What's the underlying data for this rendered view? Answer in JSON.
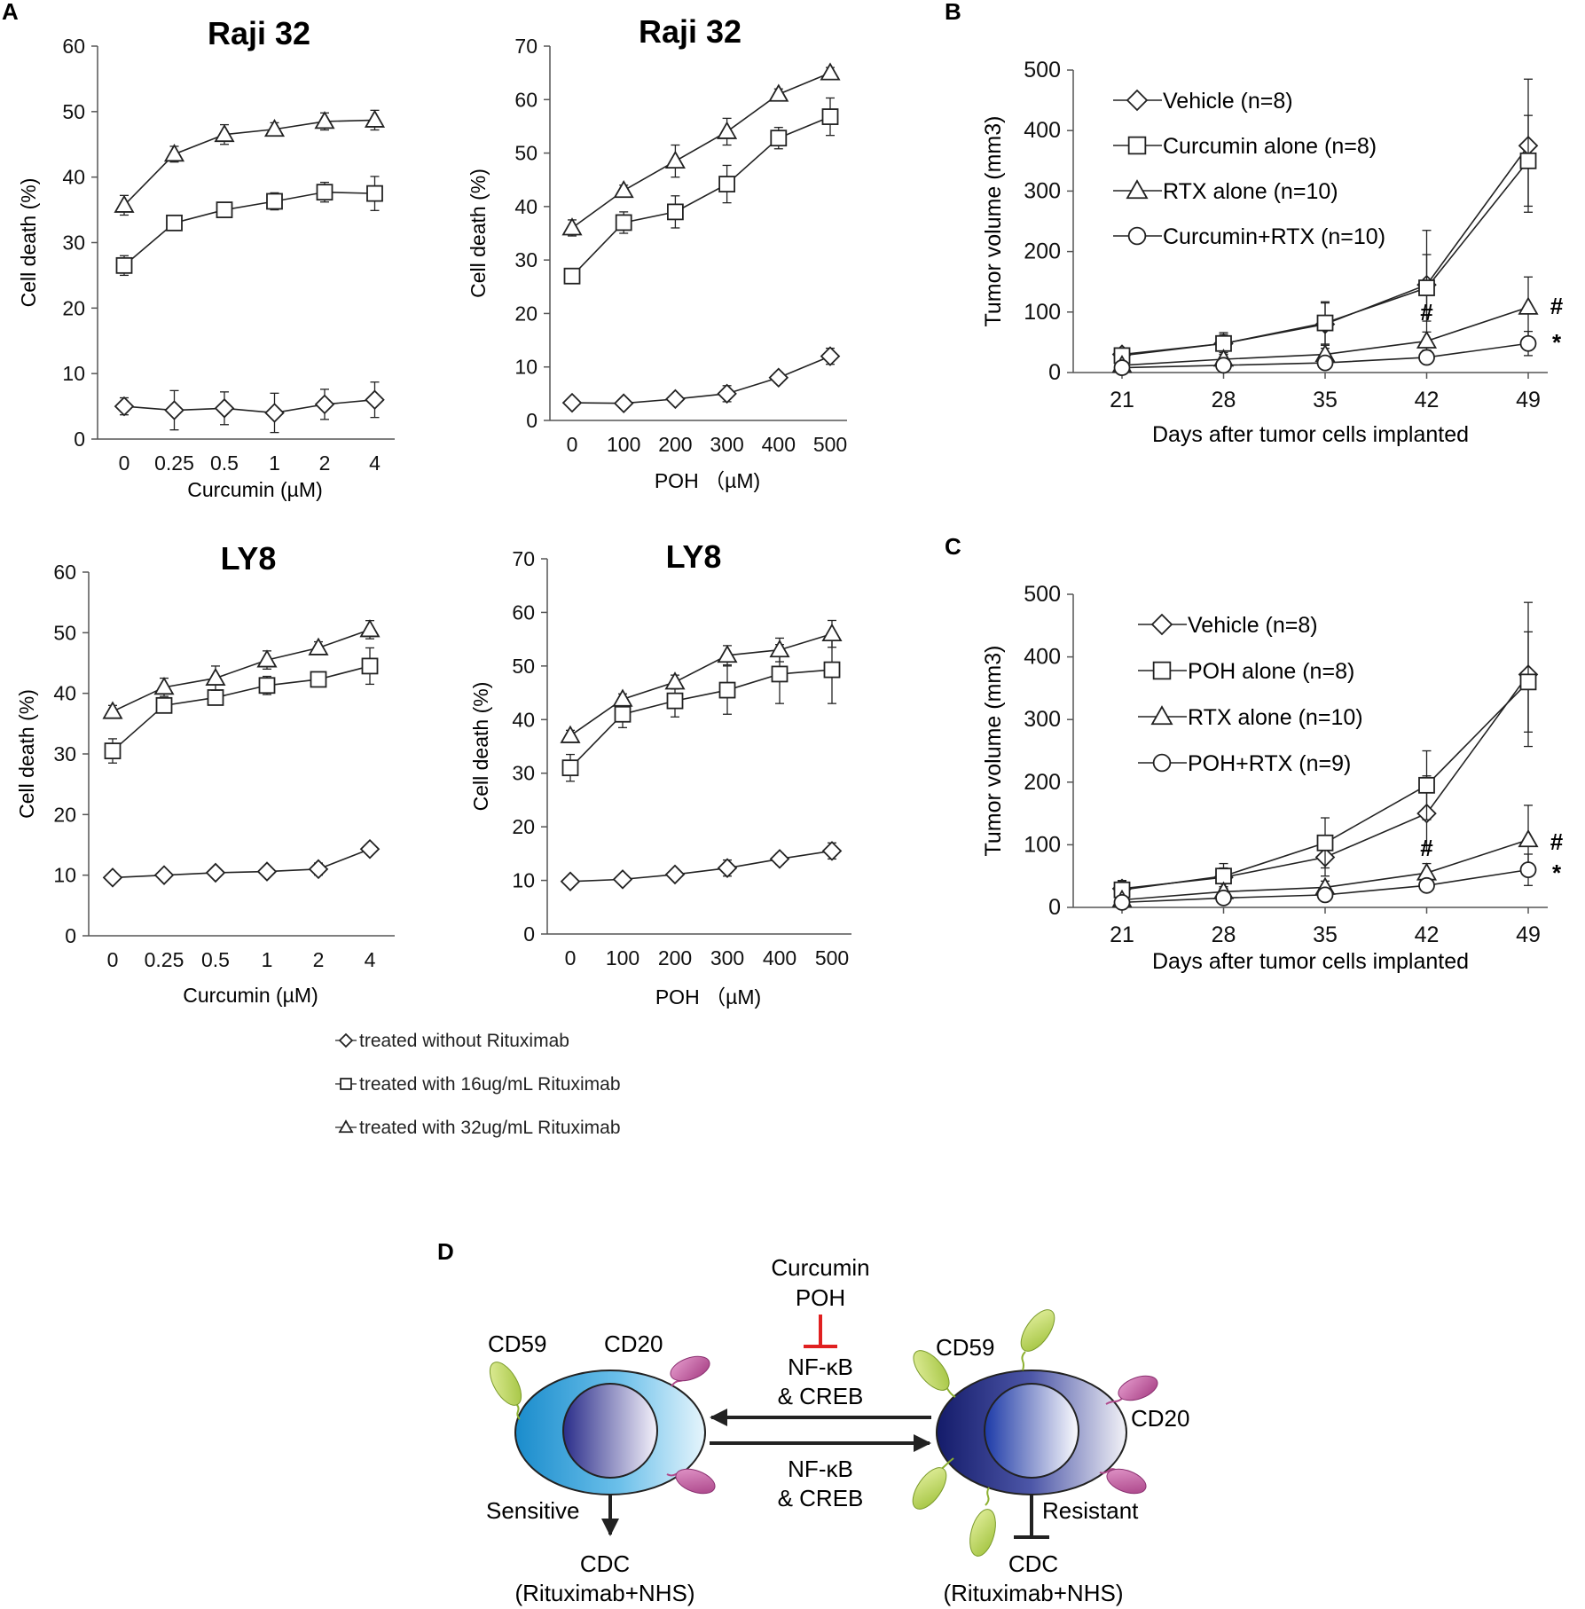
{
  "panel_labels": {
    "a": "A",
    "b": "B",
    "c": "C",
    "d": "D"
  },
  "legend_a": {
    "items": [
      {
        "label": "treated without Rituximab",
        "marker": "diamond"
      },
      {
        "label": "treated with 16ug/mL Rituximab",
        "marker": "square"
      },
      {
        "label": "treated with 32ug/mL Rituximab",
        "marker": "triangle"
      }
    ]
  },
  "chart_data": [
    {
      "id": "a1",
      "type": "line",
      "title": "Raji 32",
      "xlabel": "Curcumin  (µM)",
      "ylabel": "Cell death (%)",
      "categories": [
        "0",
        "0.25",
        "0.5",
        "1",
        "2",
        "4"
      ],
      "ylim": [
        0,
        60
      ],
      "ytick_step": 10,
      "series": [
        {
          "name": "treated without Rituximab",
          "marker": "diamond",
          "values": [
            5,
            4.4,
            4.7,
            4,
            5.3,
            6
          ],
          "err": [
            1.3,
            3,
            2.5,
            3,
            2.3,
            2.7
          ]
        },
        {
          "name": "treated with 16ug/mL Rituximab",
          "marker": "square",
          "values": [
            26.5,
            33,
            35,
            36.3,
            37.7,
            37.5
          ],
          "err": [
            1.5,
            0.8,
            1,
            1.3,
            1.5,
            2.6
          ]
        },
        {
          "name": "treated with 32ug/mL Rituximab",
          "marker": "triangle",
          "values": [
            35.7,
            43.5,
            46.5,
            47.3,
            48.5,
            48.7
          ],
          "err": [
            1.5,
            1.2,
            1.5,
            1,
            1.3,
            1.5
          ]
        }
      ]
    },
    {
      "id": "a2",
      "type": "line",
      "title": "Raji 32",
      "xlabel": "POH （µM)",
      "ylabel": "Cell death (%)",
      "categories": [
        "0",
        "100",
        "200",
        "300",
        "400",
        "500"
      ],
      "ylim": [
        0,
        70
      ],
      "ytick_step": 10,
      "series": [
        {
          "name": "treated without Rituximab",
          "marker": "diamond",
          "values": [
            3.3,
            3.2,
            4,
            5,
            8,
            12
          ],
          "err": [
            0.5,
            0.4,
            0.8,
            1.5,
            1,
            1.5
          ]
        },
        {
          "name": "treated with 16ug/mL Rituximab",
          "marker": "square",
          "values": [
            27,
            37,
            39,
            44.2,
            52.8,
            56.8
          ],
          "err": [
            1.2,
            2,
            3,
            3.5,
            2,
            3.5
          ]
        },
        {
          "name": "treated with 32ug/mL Rituximab",
          "marker": "triangle",
          "values": [
            36,
            43,
            48.5,
            54,
            61,
            65
          ],
          "err": [
            1.5,
            1,
            3,
            2.5,
            1,
            1
          ]
        }
      ]
    },
    {
      "id": "a3",
      "type": "line",
      "title": "LY8",
      "xlabel": "Curcumin  (µM)",
      "ylabel": "Cell death (%)",
      "categories": [
        "0",
        "0.25",
        "0.5",
        "1",
        "2",
        "4"
      ],
      "ylim": [
        0,
        60
      ],
      "ytick_step": 10,
      "series": [
        {
          "name": "treated without Rituximab",
          "marker": "diamond",
          "values": [
            9.6,
            10,
            10.4,
            10.6,
            11,
            14.3
          ],
          "err": [
            0.5,
            0.5,
            0.7,
            0.7,
            1,
            0.8
          ]
        },
        {
          "name": "treated with 16ug/mL Rituximab",
          "marker": "square",
          "values": [
            30.5,
            38,
            39.3,
            41.3,
            42.3,
            44.5
          ],
          "err": [
            2,
            1.2,
            1.2,
            1.5,
            1,
            3
          ]
        },
        {
          "name": "treated with 32ug/mL Rituximab",
          "marker": "triangle",
          "values": [
            37,
            41,
            42.5,
            45.5,
            47.5,
            50.5
          ],
          "err": [
            1,
            1.5,
            2,
            1.5,
            1,
            1.5
          ]
        }
      ]
    },
    {
      "id": "a4",
      "type": "line",
      "title": "LY8",
      "xlabel": "POH （µM)",
      "ylabel": "Cell death (%)",
      "categories": [
        "0",
        "100",
        "200",
        "300",
        "400",
        "500"
      ],
      "ylim": [
        0,
        70
      ],
      "ytick_step": 10,
      "series": [
        {
          "name": "treated without Rituximab",
          "marker": "diamond",
          "values": [
            9.8,
            10.2,
            11.1,
            12.3,
            14,
            15.5
          ],
          "err": [
            0.5,
            0.5,
            0.7,
            1.5,
            1,
            1.5
          ]
        },
        {
          "name": "treated with 16ug/mL Rituximab",
          "marker": "square",
          "values": [
            31,
            41,
            43.5,
            45.5,
            48.5,
            49.3
          ],
          "err": [
            2.5,
            2.5,
            3,
            4.5,
            5.5,
            6.3
          ]
        },
        {
          "name": "treated with 32ug/mL Rituximab",
          "marker": "triangle",
          "values": [
            37,
            43.8,
            47,
            52,
            53,
            56
          ],
          "err": [
            1,
            1,
            1.3,
            1.8,
            2.2,
            2.5
          ]
        }
      ]
    },
    {
      "id": "b",
      "type": "line",
      "title": "",
      "xlabel": "Days after tumor cells implanted",
      "ylabel": "Tumor volume  (mm3)",
      "categories": [
        "21",
        "28",
        "35",
        "42",
        "49"
      ],
      "ylim": [
        0,
        500
      ],
      "ytick_step": 100,
      "annotations": [
        {
          "text": "#",
          "x": "42",
          "y": 100
        },
        {
          "text": "#",
          "x": "49",
          "y": 110,
          "offset": "right"
        },
        {
          "text": "*",
          "x": "49",
          "y": 50,
          "offset": "right"
        }
      ],
      "series": [
        {
          "name": "Vehicle (n=8)",
          "marker": "diamond",
          "values": [
            30,
            48,
            80,
            145,
            375
          ],
          "err": [
            10,
            15,
            35,
            90,
            110
          ]
        },
        {
          "name": "Curcumin alone (n=8)",
          "marker": "square",
          "values": [
            28,
            48,
            82,
            140,
            350
          ],
          "err": [
            12,
            18,
            35,
            55,
            75
          ]
        },
        {
          "name": "RTX alone (n=10)",
          "marker": "triangle",
          "values": [
            12,
            22,
            30,
            52,
            108
          ],
          "err": [
            5,
            8,
            10,
            15,
            50
          ]
        },
        {
          "name": "Curcumin+RTX (n=10)",
          "marker": "circle",
          "values": [
            8,
            12,
            16,
            25,
            48
          ],
          "err": [
            3,
            5,
            6,
            8,
            20
          ]
        }
      ]
    },
    {
      "id": "c",
      "type": "line",
      "title": "",
      "xlabel": "Days after tumor cells implanted",
      "ylabel": "Tumor volume  (mm3)",
      "categories": [
        "21",
        "28",
        "35",
        "42",
        "49"
      ],
      "ylim": [
        0,
        500
      ],
      "ytick_step": 100,
      "annotations": [
        {
          "text": "#",
          "x": "42",
          "y": 95
        },
        {
          "text": "#",
          "x": "49",
          "y": 105,
          "offset": "right"
        },
        {
          "text": "*",
          "x": "49",
          "y": 55,
          "offset": "right"
        }
      ],
      "series": [
        {
          "name": "Vehicle (n=8)",
          "marker": "diamond",
          "values": [
            30,
            48,
            80,
            150,
            372
          ],
          "err": [
            12,
            15,
            30,
            60,
            115
          ]
        },
        {
          "name": "POH alone (n=8)",
          "marker": "square",
          "values": [
            28,
            50,
            103,
            195,
            360
          ],
          "err": [
            15,
            20,
            40,
            55,
            80
          ]
        },
        {
          "name": "RTX alone (n=10)",
          "marker": "triangle",
          "values": [
            12,
            25,
            32,
            55,
            108
          ],
          "err": [
            5,
            8,
            10,
            15,
            55
          ]
        },
        {
          "name": "POH+RTX (n=9)",
          "marker": "circle",
          "values": [
            8,
            15,
            20,
            35,
            60
          ],
          "err": [
            3,
            5,
            6,
            8,
            25
          ]
        }
      ]
    }
  ],
  "diagram": {
    "inhibitors": "Curcumin\nPOH",
    "top_arrow_label": "NF-κB\n& CREB",
    "bottom_arrow_label": "NF-κB\n& CREB",
    "left_cell": {
      "cd59": "CD59",
      "cd20": "CD20",
      "outcome": "Sensitive",
      "cdc": "CDC\n(Rituximab+NHS)"
    },
    "right_cell": {
      "cd59": "CD59",
      "cd20": "CD20",
      "outcome": "Resistant",
      "cdc": "CDC\n(Rituximab+NHS)"
    },
    "colors": {
      "inhibit": "#e02020",
      "cd59": "#b8d64a",
      "cd20": "#c0509a",
      "left_cell": "#1a90d0",
      "right_cell": "#1a237a"
    }
  }
}
